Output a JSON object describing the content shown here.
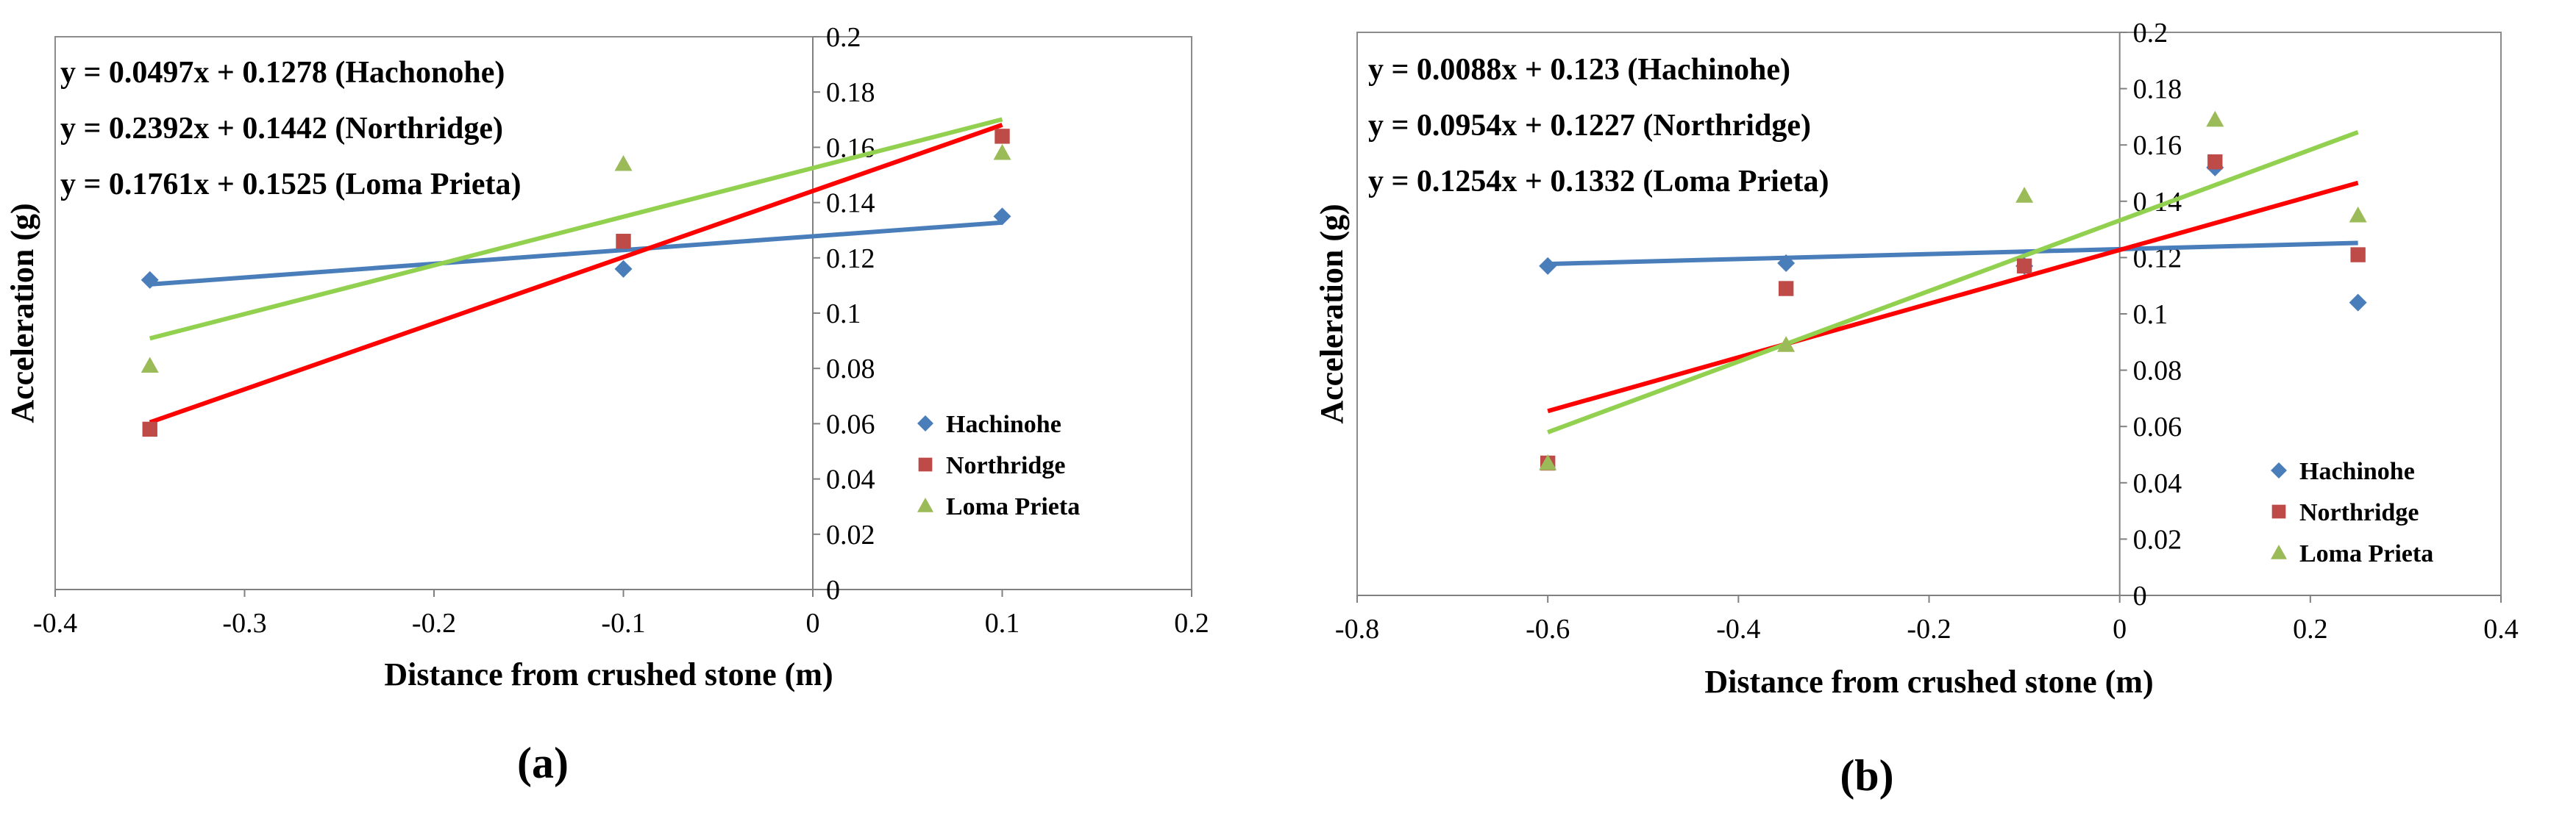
{
  "chart_data": [
    {
      "type": "scatter",
      "panel_label": "(a)",
      "xlabel": "Distance from crushed stone (m)",
      "ylabel": "Acceleration (g)",
      "xlim": [
        -0.4,
        0.2
      ],
      "ylim": [
        0,
        0.2
      ],
      "x_ticks": [
        -0.4,
        -0.3,
        -0.2,
        -0.1,
        0,
        0.1,
        0.2
      ],
      "x_tick_labels": [
        "-0.4",
        "-0.3",
        "-0.2",
        "-0.1",
        "0",
        "0.1",
        "0.2"
      ],
      "y_ticks": [
        0,
        0.02,
        0.04,
        0.06,
        0.08,
        0.1,
        0.12,
        0.14,
        0.16,
        0.18,
        0.2
      ],
      "y_tick_labels": [
        "0",
        "0.02",
        "0.04",
        "0.06",
        "0.08",
        "0.1",
        "0.12",
        "0.14",
        "0.16",
        "0.18",
        "0.2"
      ],
      "legend_position": "bottom-right",
      "series": [
        {
          "name": "Hachinohe",
          "marker": "diamond",
          "color": "#4a7ebb",
          "line_color": "#4a7ebb",
          "x": [
            -0.35,
            -0.1,
            0.1
          ],
          "y": [
            0.112,
            0.116,
            0.135
          ],
          "trend": {
            "slope": 0.0497,
            "intercept": 0.1278,
            "x_range": [
              -0.35,
              0.1
            ]
          },
          "equation": "y = 0.0497x + 0.1278 (Hachonohe)"
        },
        {
          "name": "Northridge",
          "marker": "square",
          "color": "#be4b48",
          "line_color": "#ff0000",
          "x": [
            -0.35,
            -0.1,
            0.1
          ],
          "y": [
            0.058,
            0.126,
            0.164
          ],
          "trend": {
            "slope": 0.2392,
            "intercept": 0.1442,
            "x_range": [
              -0.35,
              0.1
            ]
          },
          "equation": "y = 0.2392x + 0.1442 (Northridge)"
        },
        {
          "name": "Loma Prieta",
          "marker": "triangle",
          "color": "#9bbb59",
          "line_color": "#92d050",
          "x": [
            -0.35,
            -0.1,
            0.1
          ],
          "y": [
            0.081,
            0.154,
            0.158
          ],
          "trend": {
            "slope": 0.1761,
            "intercept": 0.1525,
            "x_range": [
              -0.35,
              0.1
            ]
          },
          "equation": "y = 0.1761x + 0.1525 (Loma Prieta)"
        }
      ]
    },
    {
      "type": "scatter",
      "panel_label": "(b)",
      "xlabel": "Distance from crushed stone (m)",
      "ylabel": "Acceleration (g)",
      "xlim": [
        -0.8,
        0.4
      ],
      "ylim": [
        0,
        0.2
      ],
      "x_ticks": [
        -0.8,
        -0.6,
        -0.4,
        -0.2,
        0,
        0.2,
        0.4
      ],
      "x_tick_labels": [
        "-0.8",
        "-0.6",
        "-0.4",
        "-0.2",
        "0",
        "0.2",
        "0.4"
      ],
      "y_ticks": [
        0,
        0.02,
        0.04,
        0.06,
        0.08,
        0.1,
        0.12,
        0.14,
        0.16,
        0.18,
        0.2
      ],
      "y_tick_labels": [
        "0",
        "0.02",
        "0.04",
        "0.06",
        "0.08",
        "0.1",
        "0.12",
        "0.14",
        "0.16",
        "0.18",
        "0.2"
      ],
      "legend_position": "bottom-right",
      "series": [
        {
          "name": "Hachinohe",
          "marker": "diamond",
          "color": "#4a7ebb",
          "line_color": "#4a7ebb",
          "x": [
            -0.6,
            -0.35,
            -0.1,
            0.1,
            0.25
          ],
          "y": [
            0.117,
            0.118,
            0.117,
            0.152,
            0.104
          ],
          "trend": {
            "slope": 0.0088,
            "intercept": 0.123,
            "x_range": [
              -0.6,
              0.25
            ]
          },
          "equation": "y = 0.0088x + 0.123  (Hachinohe)"
        },
        {
          "name": "Northridge",
          "marker": "square",
          "color": "#be4b48",
          "line_color": "#ff0000",
          "x": [
            -0.6,
            -0.35,
            -0.1,
            0.1,
            0.25
          ],
          "y": [
            0.047,
            0.109,
            0.117,
            0.154,
            0.121
          ],
          "trend": {
            "slope": 0.0954,
            "intercept": 0.1227,
            "x_range": [
              -0.6,
              0.25
            ]
          },
          "equation": "y = 0.0954x + 0.1227 (Northridge)"
        },
        {
          "name": "Loma Prieta",
          "marker": "triangle",
          "color": "#9bbb59",
          "line_color": "#92d050",
          "x": [
            -0.6,
            -0.35,
            -0.1,
            0.1,
            0.25
          ],
          "y": [
            0.047,
            0.089,
            0.142,
            0.169,
            0.135
          ],
          "trend": {
            "slope": 0.1254,
            "intercept": 0.1332,
            "x_range": [
              -0.6,
              0.25
            ]
          },
          "equation": "y = 0.1254x + 0.1332 (Loma Prieta)"
        }
      ]
    }
  ]
}
